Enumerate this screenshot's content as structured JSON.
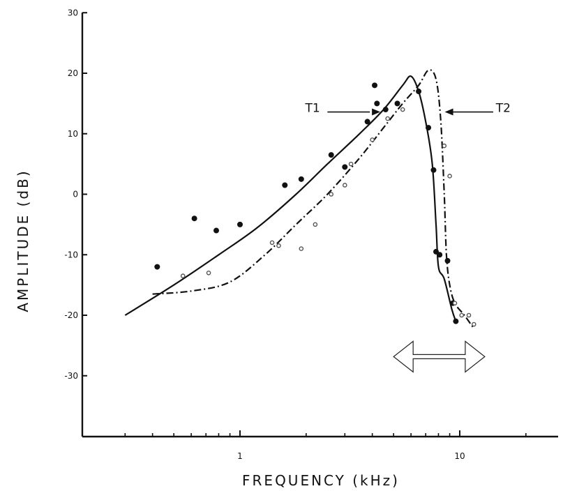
{
  "chart_data": {
    "type": "line",
    "xlabel": "FREQUENCY (kHz)",
    "ylabel": "AMPLITUDE (dB)",
    "xscale": "log",
    "xlim": [
      0.3,
      25
    ],
    "ylim": [
      -40,
      30
    ],
    "x_ticks": [
      {
        "value": 1,
        "label": "1"
      },
      {
        "value": 10,
        "label": "10"
      }
    ],
    "y_ticks": [
      {
        "value": 30,
        "label": "30"
      },
      {
        "value": 20,
        "label": "20"
      },
      {
        "value": 10,
        "label": "10"
      },
      {
        "value": 0,
        "label": "0"
      },
      {
        "value": -10,
        "label": "-10"
      },
      {
        "value": -20,
        "label": "-20"
      },
      {
        "value": -30,
        "label": "-30"
      }
    ],
    "grid": false,
    "series": [
      {
        "name": "T1",
        "style": "solid",
        "curve": [
          [
            0.3,
            -20
          ],
          [
            0.5,
            -15
          ],
          [
            0.8,
            -10
          ],
          [
            1.2,
            -5.5
          ],
          [
            1.8,
            0
          ],
          [
            2.5,
            5
          ],
          [
            3.5,
            10
          ],
          [
            4.5,
            14
          ],
          [
            5.5,
            18
          ],
          [
            6.0,
            19.5
          ],
          [
            6.5,
            17
          ],
          [
            7.0,
            12
          ],
          [
            7.5,
            5
          ],
          [
            7.8,
            -5
          ],
          [
            8.0,
            -12
          ],
          [
            8.5,
            -14
          ],
          [
            9.2,
            -19
          ],
          [
            9.6,
            -21
          ]
        ],
        "points": [
          [
            0.42,
            -12
          ],
          [
            0.62,
            -4
          ],
          [
            0.78,
            -6
          ],
          [
            1.0,
            -5
          ],
          [
            1.6,
            1.5
          ],
          [
            1.9,
            2.5
          ],
          [
            2.6,
            6.5
          ],
          [
            3.0,
            4.5
          ],
          [
            3.8,
            12
          ],
          [
            4.1,
            18
          ],
          [
            4.2,
            15
          ],
          [
            4.6,
            14
          ],
          [
            5.2,
            15
          ],
          [
            6.5,
            17
          ],
          [
            7.2,
            11
          ],
          [
            7.6,
            4
          ],
          [
            7.8,
            -9.5
          ],
          [
            8.1,
            -10
          ],
          [
            8.8,
            -11
          ],
          [
            9.3,
            -18
          ],
          [
            9.6,
            -21
          ]
        ]
      },
      {
        "name": "T2",
        "style": "dash-dot",
        "curve": [
          [
            0.4,
            -16.5
          ],
          [
            0.6,
            -16
          ],
          [
            0.9,
            -14.5
          ],
          [
            1.3,
            -10
          ],
          [
            1.8,
            -5
          ],
          [
            2.5,
            0
          ],
          [
            3.5,
            6
          ],
          [
            4.5,
            11
          ],
          [
            5.5,
            15
          ],
          [
            6.5,
            18
          ],
          [
            7.2,
            20.5
          ],
          [
            7.8,
            19
          ],
          [
            8.2,
            12
          ],
          [
            8.5,
            0
          ],
          [
            8.7,
            -10
          ],
          [
            9.0,
            -15
          ],
          [
            9.5,
            -18
          ],
          [
            10.5,
            -20
          ],
          [
            11.5,
            -22
          ]
        ],
        "points": [
          [
            0.55,
            -13.5
          ],
          [
            0.72,
            -13
          ],
          [
            1.4,
            -8
          ],
          [
            1.5,
            -8.5
          ],
          [
            1.9,
            -9
          ],
          [
            2.2,
            -5
          ],
          [
            2.6,
            0
          ],
          [
            3.0,
            1.5
          ],
          [
            3.2,
            5
          ],
          [
            4.0,
            9
          ],
          [
            4.7,
            12.5
          ],
          [
            5.5,
            14
          ],
          [
            8.5,
            8
          ],
          [
            9.0,
            3
          ],
          [
            9.5,
            -18
          ],
          [
            10.2,
            -20
          ],
          [
            11.0,
            -20
          ],
          [
            11.6,
            -21.5
          ]
        ]
      }
    ],
    "annotations": [
      {
        "text": "T1",
        "arrow_to_series": "T1"
      },
      {
        "text": "T2",
        "arrow_to_series": "T2"
      },
      {
        "text": "",
        "shape": "double-headed arrow",
        "x_range_khz": [
          5,
          13
        ],
        "y_db": -25
      }
    ]
  }
}
